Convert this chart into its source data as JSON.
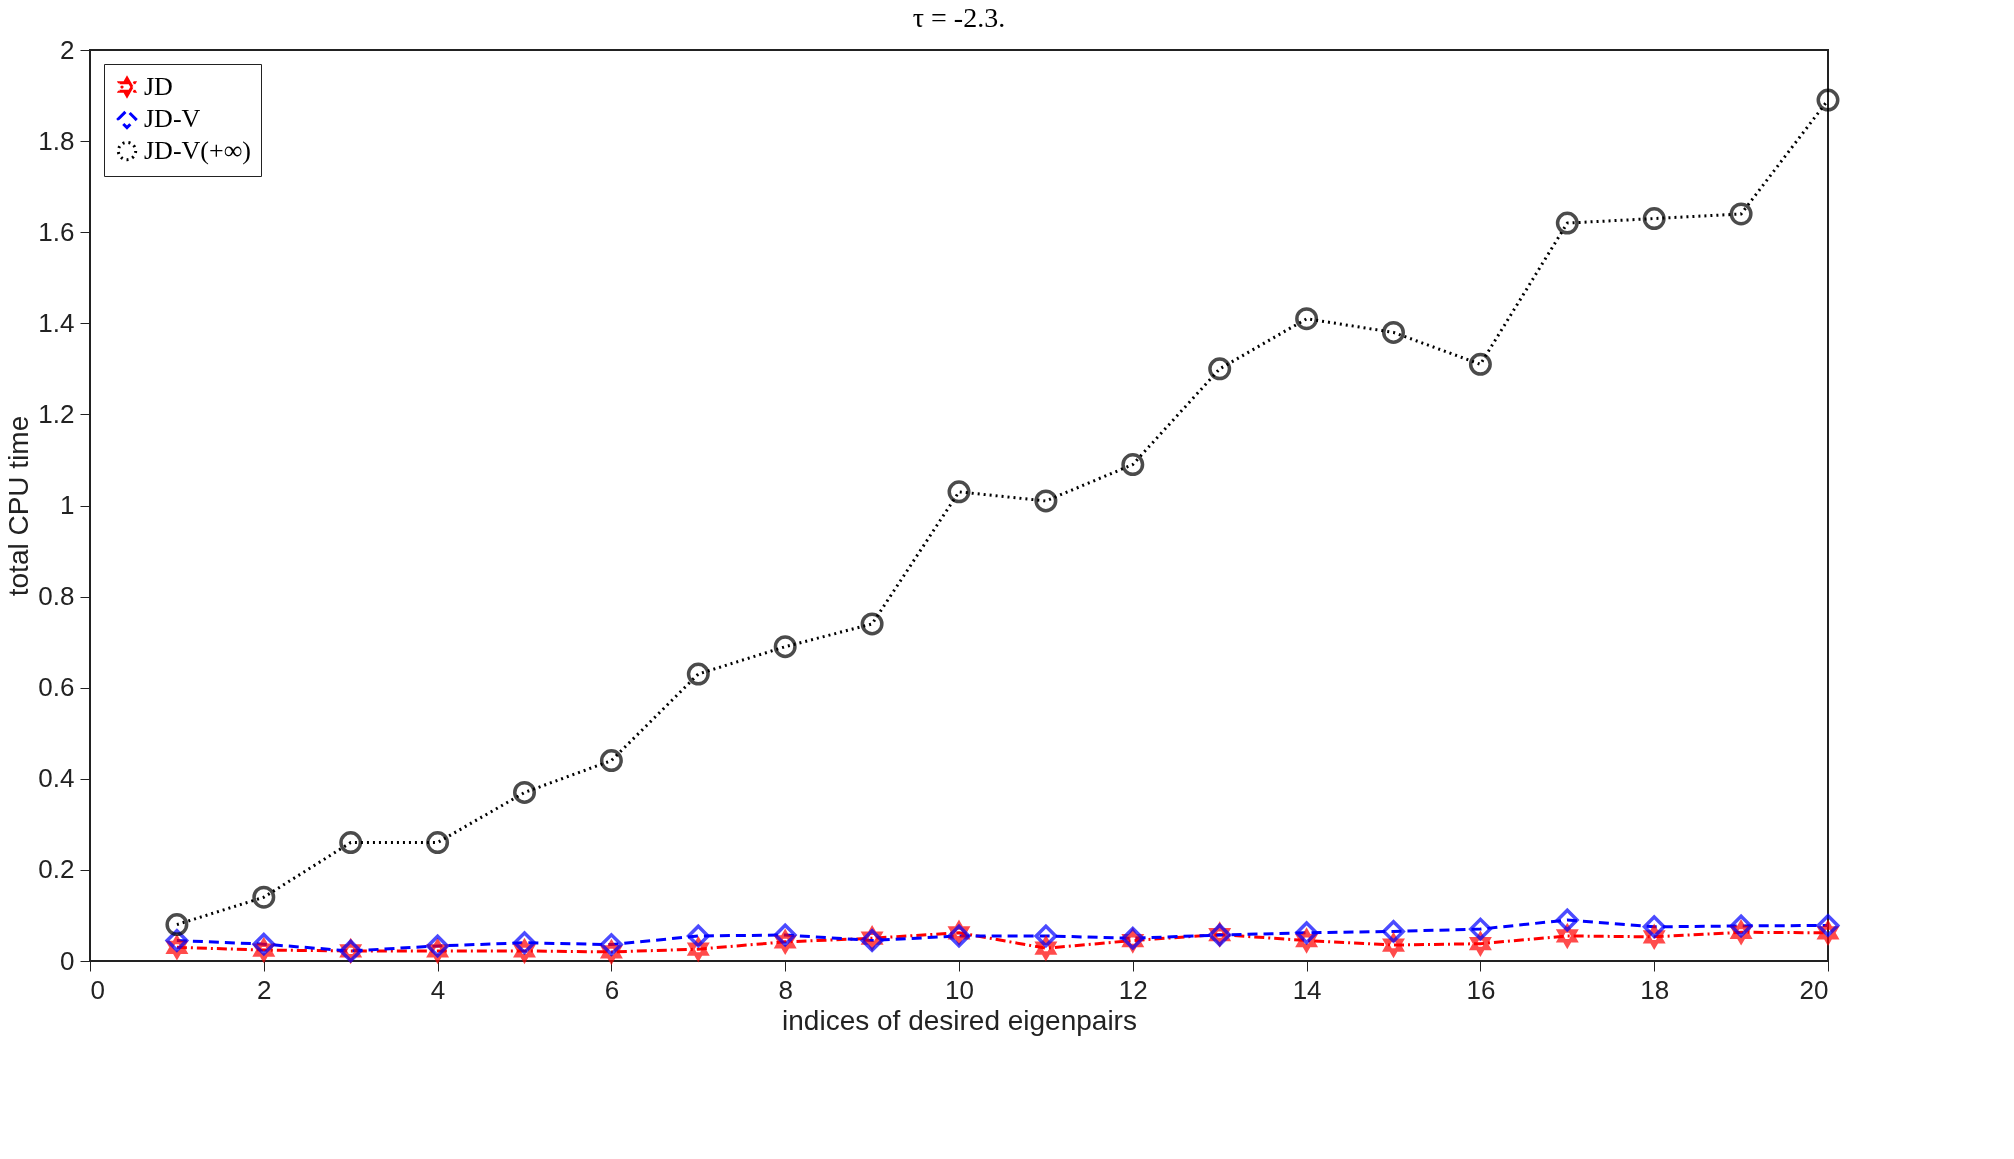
{
  "chart_data": {
    "type": "line",
    "title": "τ = -2.3.",
    "xlabel": "indices of desired eigenpairs",
    "ylabel": "total CPU time",
    "x": [
      1,
      2,
      3,
      4,
      5,
      6,
      7,
      8,
      9,
      10,
      11,
      12,
      13,
      14,
      15,
      16,
      17,
      18,
      19,
      20
    ],
    "xlim": [
      0,
      20
    ],
    "xticks": [
      0,
      2,
      4,
      6,
      8,
      10,
      12,
      14,
      16,
      18,
      20
    ],
    "ylim": [
      0,
      2
    ],
    "yticks": [
      0,
      0.2,
      0.4,
      0.6,
      0.8,
      1,
      1.2,
      1.4,
      1.6,
      1.8,
      2
    ],
    "grid": false,
    "legend": "top left",
    "series": [
      {
        "name": "JD",
        "color": "#ff0000",
        "marker": "star",
        "line_style": "dashdot",
        "values": [
          0.03,
          0.024,
          0.022,
          0.022,
          0.022,
          0.02,
          0.026,
          0.042,
          0.05,
          0.062,
          0.028,
          0.045,
          0.058,
          0.045,
          0.035,
          0.038,
          0.055,
          0.053,
          0.063,
          0.062
        ]
      },
      {
        "name": "JD-V",
        "color": "#0000ff",
        "marker": "diamond",
        "line_style": "dashed",
        "values": [
          0.045,
          0.037,
          0.022,
          0.033,
          0.04,
          0.036,
          0.055,
          0.057,
          0.045,
          0.055,
          0.055,
          0.05,
          0.057,
          0.062,
          0.065,
          0.07,
          0.09,
          0.075,
          0.077,
          0.078
        ]
      },
      {
        "name": "JD-V(+∞)",
        "color": "#000000",
        "marker": "circle",
        "line_style": "dotted",
        "values": [
          0.08,
          0.14,
          0.26,
          0.26,
          0.37,
          0.44,
          0.63,
          0.69,
          0.74,
          1.03,
          1.01,
          1.09,
          1.3,
          1.41,
          1.38,
          1.31,
          1.62,
          1.63,
          1.64,
          1.89
        ]
      }
    ]
  }
}
